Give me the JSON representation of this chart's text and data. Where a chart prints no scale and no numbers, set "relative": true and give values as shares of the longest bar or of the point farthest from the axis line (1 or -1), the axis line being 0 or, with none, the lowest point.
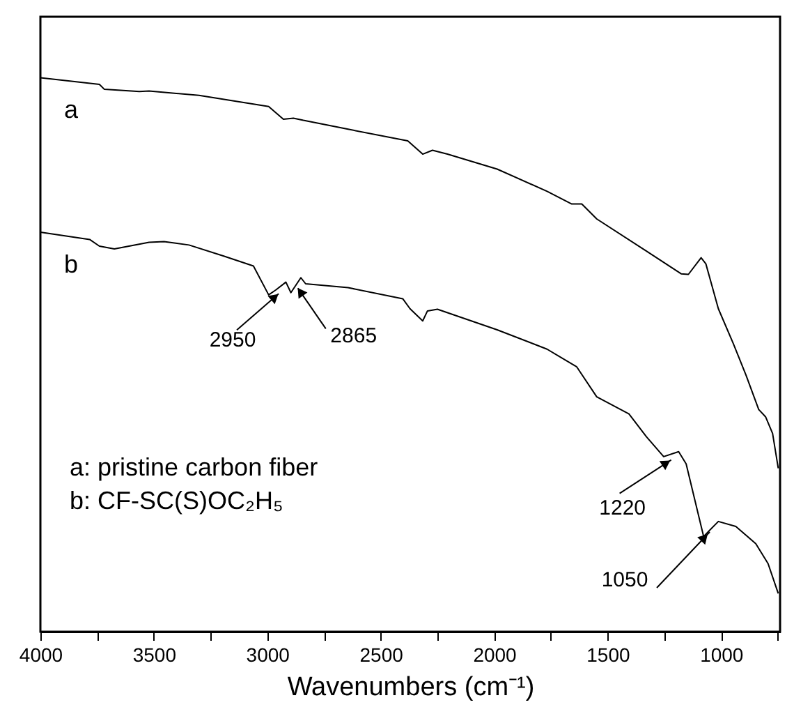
{
  "chart_data": {
    "type": "line",
    "relative": true,
    "xlabel": "Wavenumbers  (cm⁻¹)",
    "x": [
      4000,
      3740,
      3718,
      3564,
      3521,
      3301,
      2994,
      2929,
      2885,
      2841,
      2644,
      2381,
      2315,
      2272,
      2206,
      1987,
      1767,
      1658,
      1614,
      1548,
      1329,
      1176,
      1144,
      1088,
      1067,
      1012,
      946,
      890,
      834,
      804,
      773,
      748
    ],
    "series": [
      {
        "name": "a",
        "color": "#000000",
        "values": [
          1.0,
          0.988,
          0.979,
          0.975,
          0.976,
          0.968,
          0.948,
          0.925,
          0.927,
          0.923,
          0.907,
          0.886,
          0.862,
          0.869,
          0.862,
          0.835,
          0.795,
          0.772,
          0.772,
          0.745,
          0.687,
          0.646,
          0.645,
          0.675,
          0.664,
          0.583,
          0.52,
          0.463,
          0.401,
          0.388,
          0.358,
          0.295
        ]
      },
      {
        "name": "b",
        "color": "#000000",
        "x": [
          4000,
          3783,
          3740,
          3674,
          3521,
          3455,
          3345,
          3192,
          3061,
          2994,
          2962,
          2918,
          2896,
          2852,
          2831,
          2644,
          2403,
          2371,
          2315,
          2294,
          2250,
          1987,
          1767,
          1636,
          1548,
          1406,
          1329,
          1253,
          1187,
          1154,
          1077,
          1012,
          935,
          847,
          793,
          748
        ],
        "values": [
          0.721,
          0.708,
          0.696,
          0.691,
          0.703,
          0.704,
          0.698,
          0.678,
          0.66,
          0.608,
          0.617,
          0.631,
          0.612,
          0.639,
          0.628,
          0.621,
          0.601,
          0.583,
          0.561,
          0.579,
          0.582,
          0.545,
          0.51,
          0.478,
          0.424,
          0.393,
          0.352,
          0.316,
          0.325,
          0.303,
          0.172,
          0.199,
          0.19,
          0.159,
          0.123,
          0.069
        ]
      }
    ],
    "xlim": [
      4000,
      740
    ],
    "xticks": [
      4000,
      {
        "value": 3750,
        "label": null
      },
      3500,
      {
        "value": 3250,
        "label": null
      },
      3000,
      {
        "value": 2750,
        "label": null
      },
      2500,
      {
        "value": 2250,
        "label": null
      },
      2000,
      {
        "value": 1750,
        "label": null
      },
      1500,
      {
        "value": 1250,
        "label": null
      },
      1000,
      {
        "value": 750,
        "label": null
      }
    ],
    "annotations": [
      {
        "text": "2950",
        "x": 2950,
        "y": 0.61
      },
      {
        "text": "2865",
        "x": 2865,
        "y": 0.62
      },
      {
        "text": "1220",
        "x": 1220,
        "y": 0.31
      },
      {
        "text": "1050",
        "x": 1050,
        "y": 0.18
      },
      "a: pristine carbon fiber",
      "b: CF-SC(S)OC₂H₅"
    ],
    "legend": false,
    "grid": false,
    "line_style": "solid",
    "marker": "none"
  }
}
